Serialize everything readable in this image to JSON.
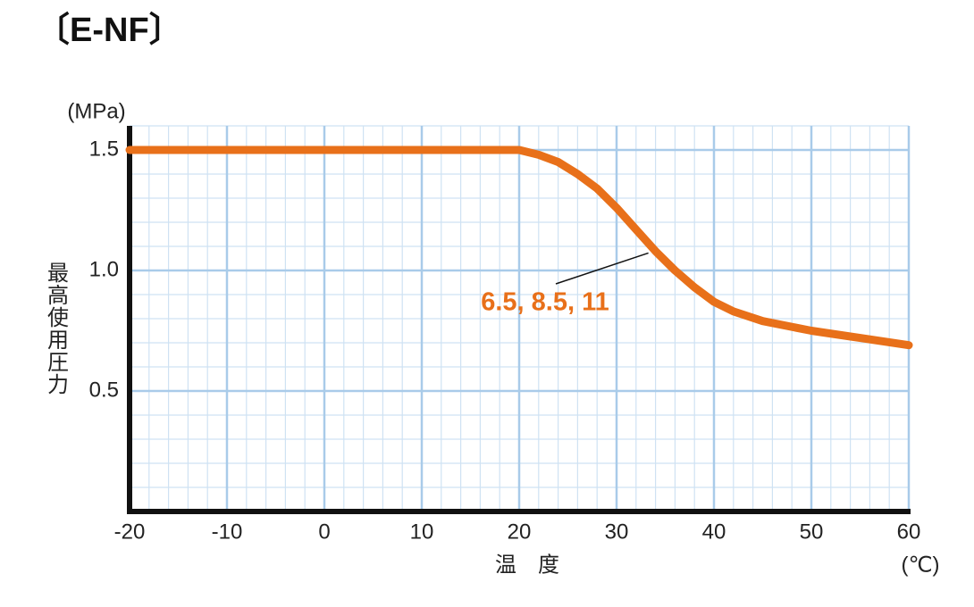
{
  "chart_data": {
    "type": "line",
    "title": "〔E-NF〕",
    "y_unit": "(MPa)",
    "y_label": "最高使用圧力",
    "x_label": "温　度",
    "x_unit": "(℃)",
    "xlim": [
      -20,
      60
    ],
    "xticks": [
      -20,
      -10,
      0,
      10,
      20,
      30,
      40,
      50,
      60
    ],
    "ylim": [
      0,
      1.6
    ],
    "yticks": [
      0.5,
      {
        "value": 1,
        "label": "1.0"
      },
      1.5
    ],
    "x_minor_step": 2,
    "y_minor_step": 0.1,
    "grid": true,
    "series": [
      {
        "name": "6.5, 8.5, 11",
        "color": "#e8701a",
        "x": [
          -20,
          20,
          22,
          24,
          26,
          28,
          30,
          32,
          34,
          36,
          38,
          40,
          42,
          45,
          50,
          55,
          60
        ],
        "values": [
          1.5,
          1.5,
          1.48,
          1.45,
          1.4,
          1.34,
          1.26,
          1.17,
          1.08,
          1.0,
          0.93,
          0.87,
          0.83,
          0.79,
          0.75,
          0.72,
          0.69
        ]
      }
    ]
  }
}
